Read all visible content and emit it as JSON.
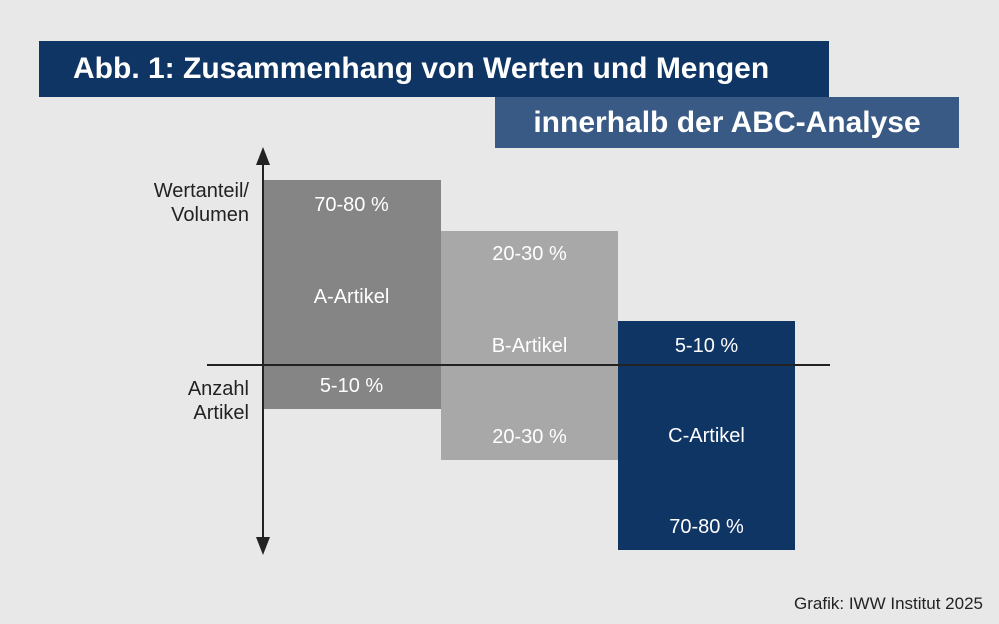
{
  "title": {
    "line1": "Abb. 1: Zusammenhang von Werten und Mengen",
    "line2": "innerhalb der ABC-Analyse"
  },
  "axis": {
    "top_label_line1": "Wertanteil/",
    "top_label_line2": "Volumen",
    "bottom_label_line1": "Anzahl",
    "bottom_label_line2": "Artikel"
  },
  "categories": [
    {
      "name": "A-Artikel",
      "value_share": "70-80 %",
      "quantity_share": "5-10 %",
      "color": "#858585"
    },
    {
      "name": "B-Artikel",
      "value_share": "20-30 %",
      "quantity_share": "20-30 %",
      "color": "#a8a8a8"
    },
    {
      "name": "C-Artikel",
      "value_share": "5-10 %",
      "quantity_share": "70-80 %",
      "color": "#0f3564"
    }
  ],
  "credit": "Grafik: IWW Institut 2025",
  "colors": {
    "title_primary": "#0f3564",
    "title_secondary": "#3a5a86",
    "background": "#e8e8e8"
  }
}
